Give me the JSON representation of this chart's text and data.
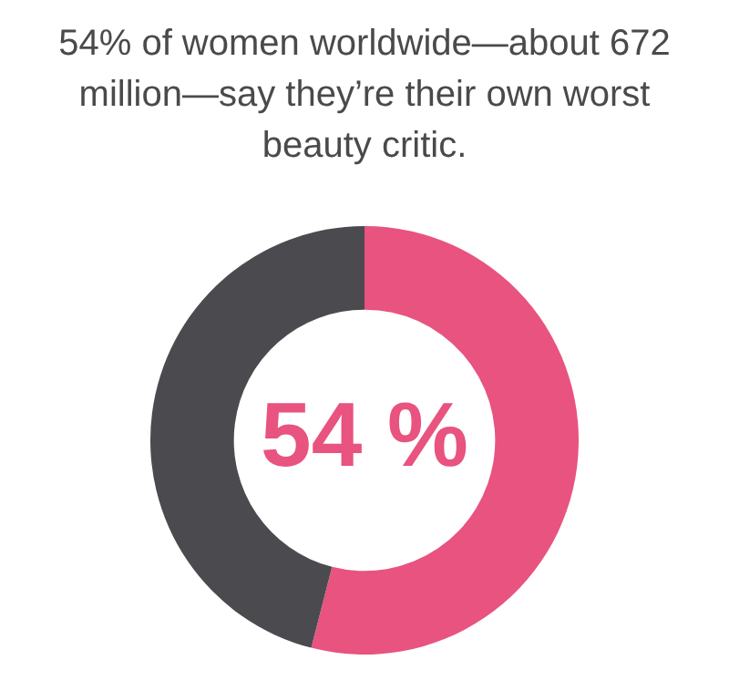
{
  "chart_data": {
    "type": "donut",
    "title": "54% of women worldwide—about 672 million—say they’re their own worst beauty critic.",
    "categories": [
      null,
      null
    ],
    "values": [
      54,
      46
    ],
    "colors": [
      "#e8537f",
      "#4a4a4f"
    ],
    "value_labels": [
      "54 %",
      null
    ],
    "legend": false
  }
}
